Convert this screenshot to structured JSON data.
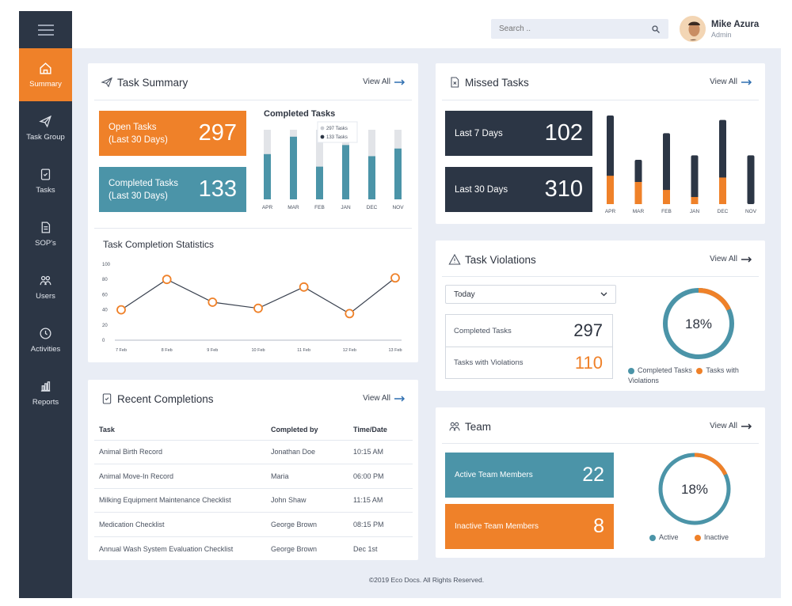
{
  "sidebar": {
    "menu_icon": "hamburger-icon",
    "items": [
      {
        "label": "Summary",
        "icon": "home-icon",
        "active": true
      },
      {
        "label": "Task Group",
        "icon": "paper-plane-icon"
      },
      {
        "label": "Tasks",
        "icon": "task-icon"
      },
      {
        "label": "SOP's",
        "icon": "document-icon"
      },
      {
        "label": "Users",
        "icon": "users-icon"
      },
      {
        "label": "Activities",
        "icon": "clock-icon"
      },
      {
        "label": "Reports",
        "icon": "bar-chart-icon"
      }
    ]
  },
  "header": {
    "search_placeholder": "Search ..",
    "user_name": "Mike Azura",
    "user_role": "Admin"
  },
  "task_summary": {
    "title": "Task Summary",
    "view_all": "View All",
    "open_label": "Open Tasks\n(Last 30 Days)",
    "open_value": "297",
    "completed_label": "Completed Tasks\n(Last 30 Days)",
    "completed_value": "133",
    "completed_chart_title": "Completed Tasks",
    "legend": [
      "297 Tasks",
      "133 Tasks"
    ],
    "stats_title": "Task Completion Statistics"
  },
  "missed_tasks": {
    "title": "Missed Tasks",
    "view_all": "View All",
    "last7_label": "Last 7 Days",
    "last7_value": "102",
    "last30_label": "Last 30 Days",
    "last30_value": "310"
  },
  "violations": {
    "title": "Task Violations",
    "view_all": "View All",
    "select_value": "Today",
    "completed_label": "Completed Tasks",
    "completed_value": "297",
    "violations_label": "Tasks with Violations",
    "violations_value": "110",
    "donut_label": "18%",
    "legend_completed": "Completed Tasks",
    "legend_violations": "Tasks with Violations"
  },
  "recent": {
    "title": "Recent Completions",
    "view_all": "View All",
    "columns": [
      "Task",
      "Completed by",
      "Time/Date"
    ],
    "rows": [
      [
        "Animal Birth Record",
        "Jonathan Doe",
        "10:15 AM"
      ],
      [
        "Animal Move-In Record",
        "Maria",
        "06:00 PM"
      ],
      [
        "Milking Equipment Maintenance Checklist",
        "John Shaw",
        "11:15 AM"
      ],
      [
        "Medication Checklist",
        "George Brown",
        "08:15 PM"
      ],
      [
        "Annual Wash System Evaluation Checklist",
        "George Brown",
        "Dec 1st"
      ]
    ]
  },
  "team": {
    "title": "Team",
    "view_all": "View All",
    "active_label": "Active Team Members",
    "active_value": "22",
    "inactive_label": "Inactive Team Members",
    "inactive_value": "8",
    "donut_label": "18%",
    "legend_active": "Active",
    "legend_inactive": "Inactive"
  },
  "footer": "©2019 Eco Docs. All Rights Reserved.",
  "colors": {
    "orange": "#ef8129",
    "teal": "#4b94a8",
    "navy": "#2c3645",
    "track": "#e2e4e8"
  },
  "chart_data": [
    {
      "type": "bar",
      "title": "Completed Tasks",
      "categories": [
        "APR",
        "MAR",
        "FEB",
        "JAN",
        "DEC",
        "NOV"
      ],
      "series": [
        {
          "name": "297 Tasks",
          "values": [
            100,
            100,
            100,
            100,
            100,
            100
          ]
        },
        {
          "name": "133 Tasks",
          "values": [
            65,
            90,
            47,
            78,
            62,
            73
          ]
        }
      ],
      "ylim": [
        0,
        100
      ]
    },
    {
      "type": "line",
      "title": "Task Completion Statistics",
      "x": [
        "7 Feb",
        "8 Feb",
        "9 Feb",
        "10 Feb",
        "11 Feb",
        "12 Feb",
        "13 Feb"
      ],
      "y": [
        40,
        80,
        50,
        42,
        70,
        35,
        82
      ],
      "yticks": [
        0,
        20,
        40,
        60,
        80,
        100
      ],
      "ylim": [
        0,
        100
      ],
      "grid": false
    },
    {
      "type": "bar",
      "title": "",
      "categories": [
        "APR",
        "MAR",
        "FEB",
        "JAN",
        "DEC",
        "NOV"
      ],
      "series": [
        {
          "name": "",
          "values": [
            100,
            50,
            80,
            55,
            95,
            55
          ]
        },
        {
          "name": "",
          "values": [
            32,
            25,
            16,
            8,
            30,
            0
          ]
        }
      ],
      "ylim": [
        0,
        100
      ]
    },
    {
      "type": "pie",
      "title": "Task Violations",
      "labels": [
        "Completed Tasks",
        "Tasks with Violations"
      ],
      "values": [
        82,
        18
      ]
    },
    {
      "type": "pie",
      "title": "Team",
      "labels": [
        "Active",
        "Inactive"
      ],
      "values": [
        82,
        18
      ]
    }
  ]
}
